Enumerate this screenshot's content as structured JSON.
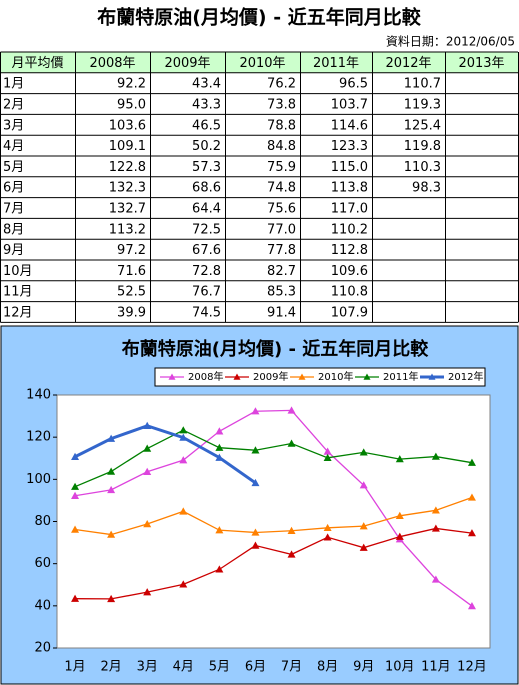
{
  "header": {
    "title": "布蘭特原油(月均價) - 近五年同月比較",
    "date": "資料日期：2012/06/05"
  },
  "table": {
    "header": [
      "月平均價",
      "2008年",
      "2009年",
      "2010年",
      "2011年",
      "2012年",
      "2013年"
    ],
    "rows": [
      [
        "1月",
        "92.2",
        "43.4",
        "76.2",
        "96.5",
        "110.7",
        null
      ],
      [
        "2月",
        "95.0",
        "43.3",
        "73.8",
        "103.7",
        "119.3",
        null
      ],
      [
        "3月",
        "103.6",
        "46.5",
        "78.8",
        "114.6",
        "125.4",
        null
      ],
      [
        "4月",
        "109.1",
        "50.2",
        "84.8",
        "123.3",
        "119.8",
        null
      ],
      [
        "5月",
        "122.8",
        "57.3",
        "75.9",
        "115.0",
        "110.3",
        null
      ],
      [
        "6月",
        "132.3",
        "68.6",
        "74.8",
        "113.8",
        "98.3",
        null
      ],
      [
        "7月",
        "132.7",
        "64.4",
        "75.6",
        "117.0",
        null,
        null
      ],
      [
        "8月",
        "113.2",
        "72.5",
        "77.0",
        "110.2",
        null,
        null
      ],
      [
        "9月",
        "97.2",
        "67.6",
        "77.8",
        "112.8",
        null,
        null
      ],
      [
        "10月",
        "71.6",
        "72.8",
        "82.7",
        "109.6",
        null,
        null
      ],
      [
        "11月",
        "52.5",
        "76.7",
        "85.3",
        "110.8",
        null,
        null
      ],
      [
        "12月",
        "39.9",
        "74.5",
        "91.4",
        "107.9",
        null,
        null
      ]
    ]
  },
  "chart_data": {
    "type": "line",
    "title": "布蘭特原油(月均價) - 近五年同月比較",
    "categories": [
      "1月",
      "2月",
      "3月",
      "4月",
      "5月",
      "6月",
      "7月",
      "8月",
      "9月",
      "10月",
      "11月",
      "12月"
    ],
    "series": [
      {
        "name": "2008年",
        "color": "#dd44dd",
        "values": [
          92.2,
          95.0,
          103.6,
          109.1,
          122.8,
          132.3,
          132.7,
          113.2,
          97.2,
          71.6,
          52.5,
          39.9
        ]
      },
      {
        "name": "2009年",
        "color": "#cc0000",
        "values": [
          43.4,
          43.3,
          46.5,
          50.2,
          57.3,
          68.6,
          64.4,
          72.5,
          67.6,
          72.8,
          76.7,
          74.5
        ]
      },
      {
        "name": "2010年",
        "color": "#ff8000",
        "values": [
          76.2,
          73.8,
          78.8,
          84.8,
          75.9,
          74.8,
          75.6,
          77.0,
          77.8,
          82.7,
          85.3,
          91.4
        ]
      },
      {
        "name": "2011年",
        "color": "#008000",
        "values": [
          96.5,
          103.7,
          114.6,
          123.3,
          115.0,
          113.8,
          117.0,
          110.2,
          112.8,
          109.6,
          110.8,
          107.9
        ]
      },
      {
        "name": "2012年",
        "color": "#3366cc",
        "values": [
          110.7,
          119.3,
          125.4,
          119.8,
          110.3,
          98.3,
          null,
          null,
          null,
          null,
          null,
          null
        ]
      }
    ],
    "ylim": [
      20,
      140
    ],
    "yticks": [
      20,
      40,
      60,
      80,
      100,
      120,
      140
    ],
    "legend": "top"
  }
}
